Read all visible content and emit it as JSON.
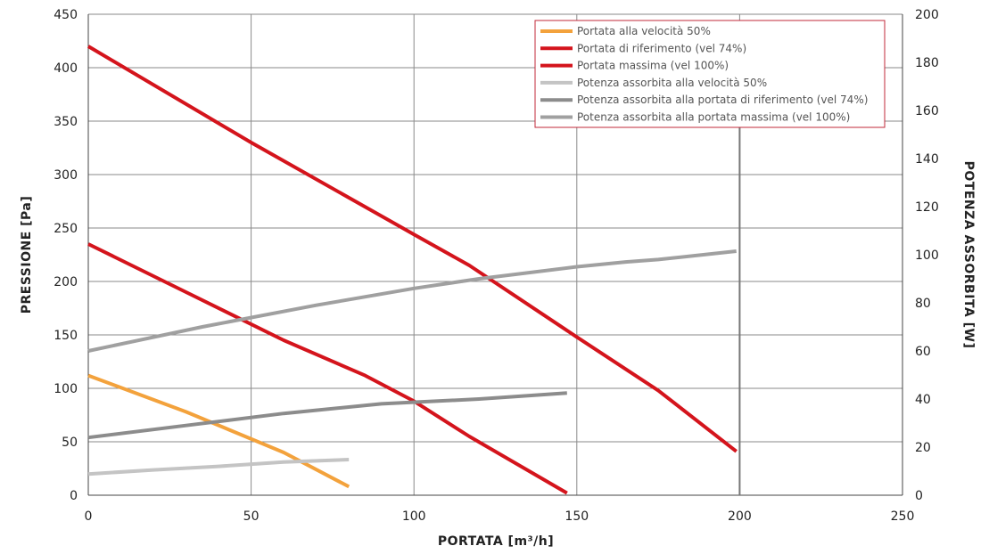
{
  "chart_data": {
    "type": "line",
    "xlabel": "PORTATA [m³/h]",
    "ylabel_left": "PRESSIONE [Pa]",
    "ylabel_right": "POTENZA ASSORBITA [W]",
    "xlim": [
      0,
      250
    ],
    "xticks": [
      0,
      50,
      100,
      150,
      200,
      250
    ],
    "ylim_left": [
      0,
      450
    ],
    "yticks_left": [
      0,
      50,
      100,
      150,
      200,
      250,
      300,
      350,
      400,
      450
    ],
    "ylim_right": [
      0,
      200
    ],
    "yticks_right": [
      0,
      20,
      40,
      60,
      80,
      100,
      120,
      140,
      160,
      180,
      200
    ],
    "grid": true,
    "legend_position": "top-right",
    "series": [
      {
        "name": "Portata alla velocità 50%",
        "axis": "left",
        "color": "#f3a23c",
        "x": [
          0,
          30,
          60,
          80
        ],
        "y": [
          112,
          78,
          40,
          8
        ]
      },
      {
        "name": "Portata di riferimento (vel 74%)",
        "axis": "left",
        "color": "#d4141c",
        "x": [
          0,
          30,
          60,
          85,
          100,
          117,
          147
        ],
        "y": [
          235,
          190,
          145,
          112,
          88,
          55,
          2
        ]
      },
      {
        "name": "Portata massima (vel 100%)",
        "axis": "left",
        "color": "#d4141c",
        "x": [
          0,
          50,
          100,
          117,
          150,
          175,
          199
        ],
        "y": [
          420,
          330,
          244,
          215,
          148,
          98,
          41
        ]
      },
      {
        "name": "Potenza assorbita alla velocità 50%",
        "axis": "right",
        "color": "#c4c4c4",
        "x": [
          0,
          20,
          40,
          60,
          80
        ],
        "y": [
          8.8,
          10.5,
          12.0,
          13.8,
          14.8
        ]
      },
      {
        "name": "Potenza assorbita alla portata di riferimento (vel 74%)",
        "axis": "right",
        "color": "#8c8c8c",
        "x": [
          0,
          30,
          60,
          90,
          120,
          147
        ],
        "y": [
          24,
          29,
          34,
          38,
          40,
          42.5
        ]
      },
      {
        "name": "Potenza assorbita alla portata massima (vel 100%)",
        "axis": "right",
        "color": "#a0a0a0",
        "x": [
          0,
          35,
          70,
          100,
          120,
          150,
          165,
          175,
          199
        ],
        "y": [
          60,
          70,
          79,
          86,
          90,
          95,
          97,
          98,
          101.5
        ]
      }
    ],
    "reference_line_x": 200
  }
}
